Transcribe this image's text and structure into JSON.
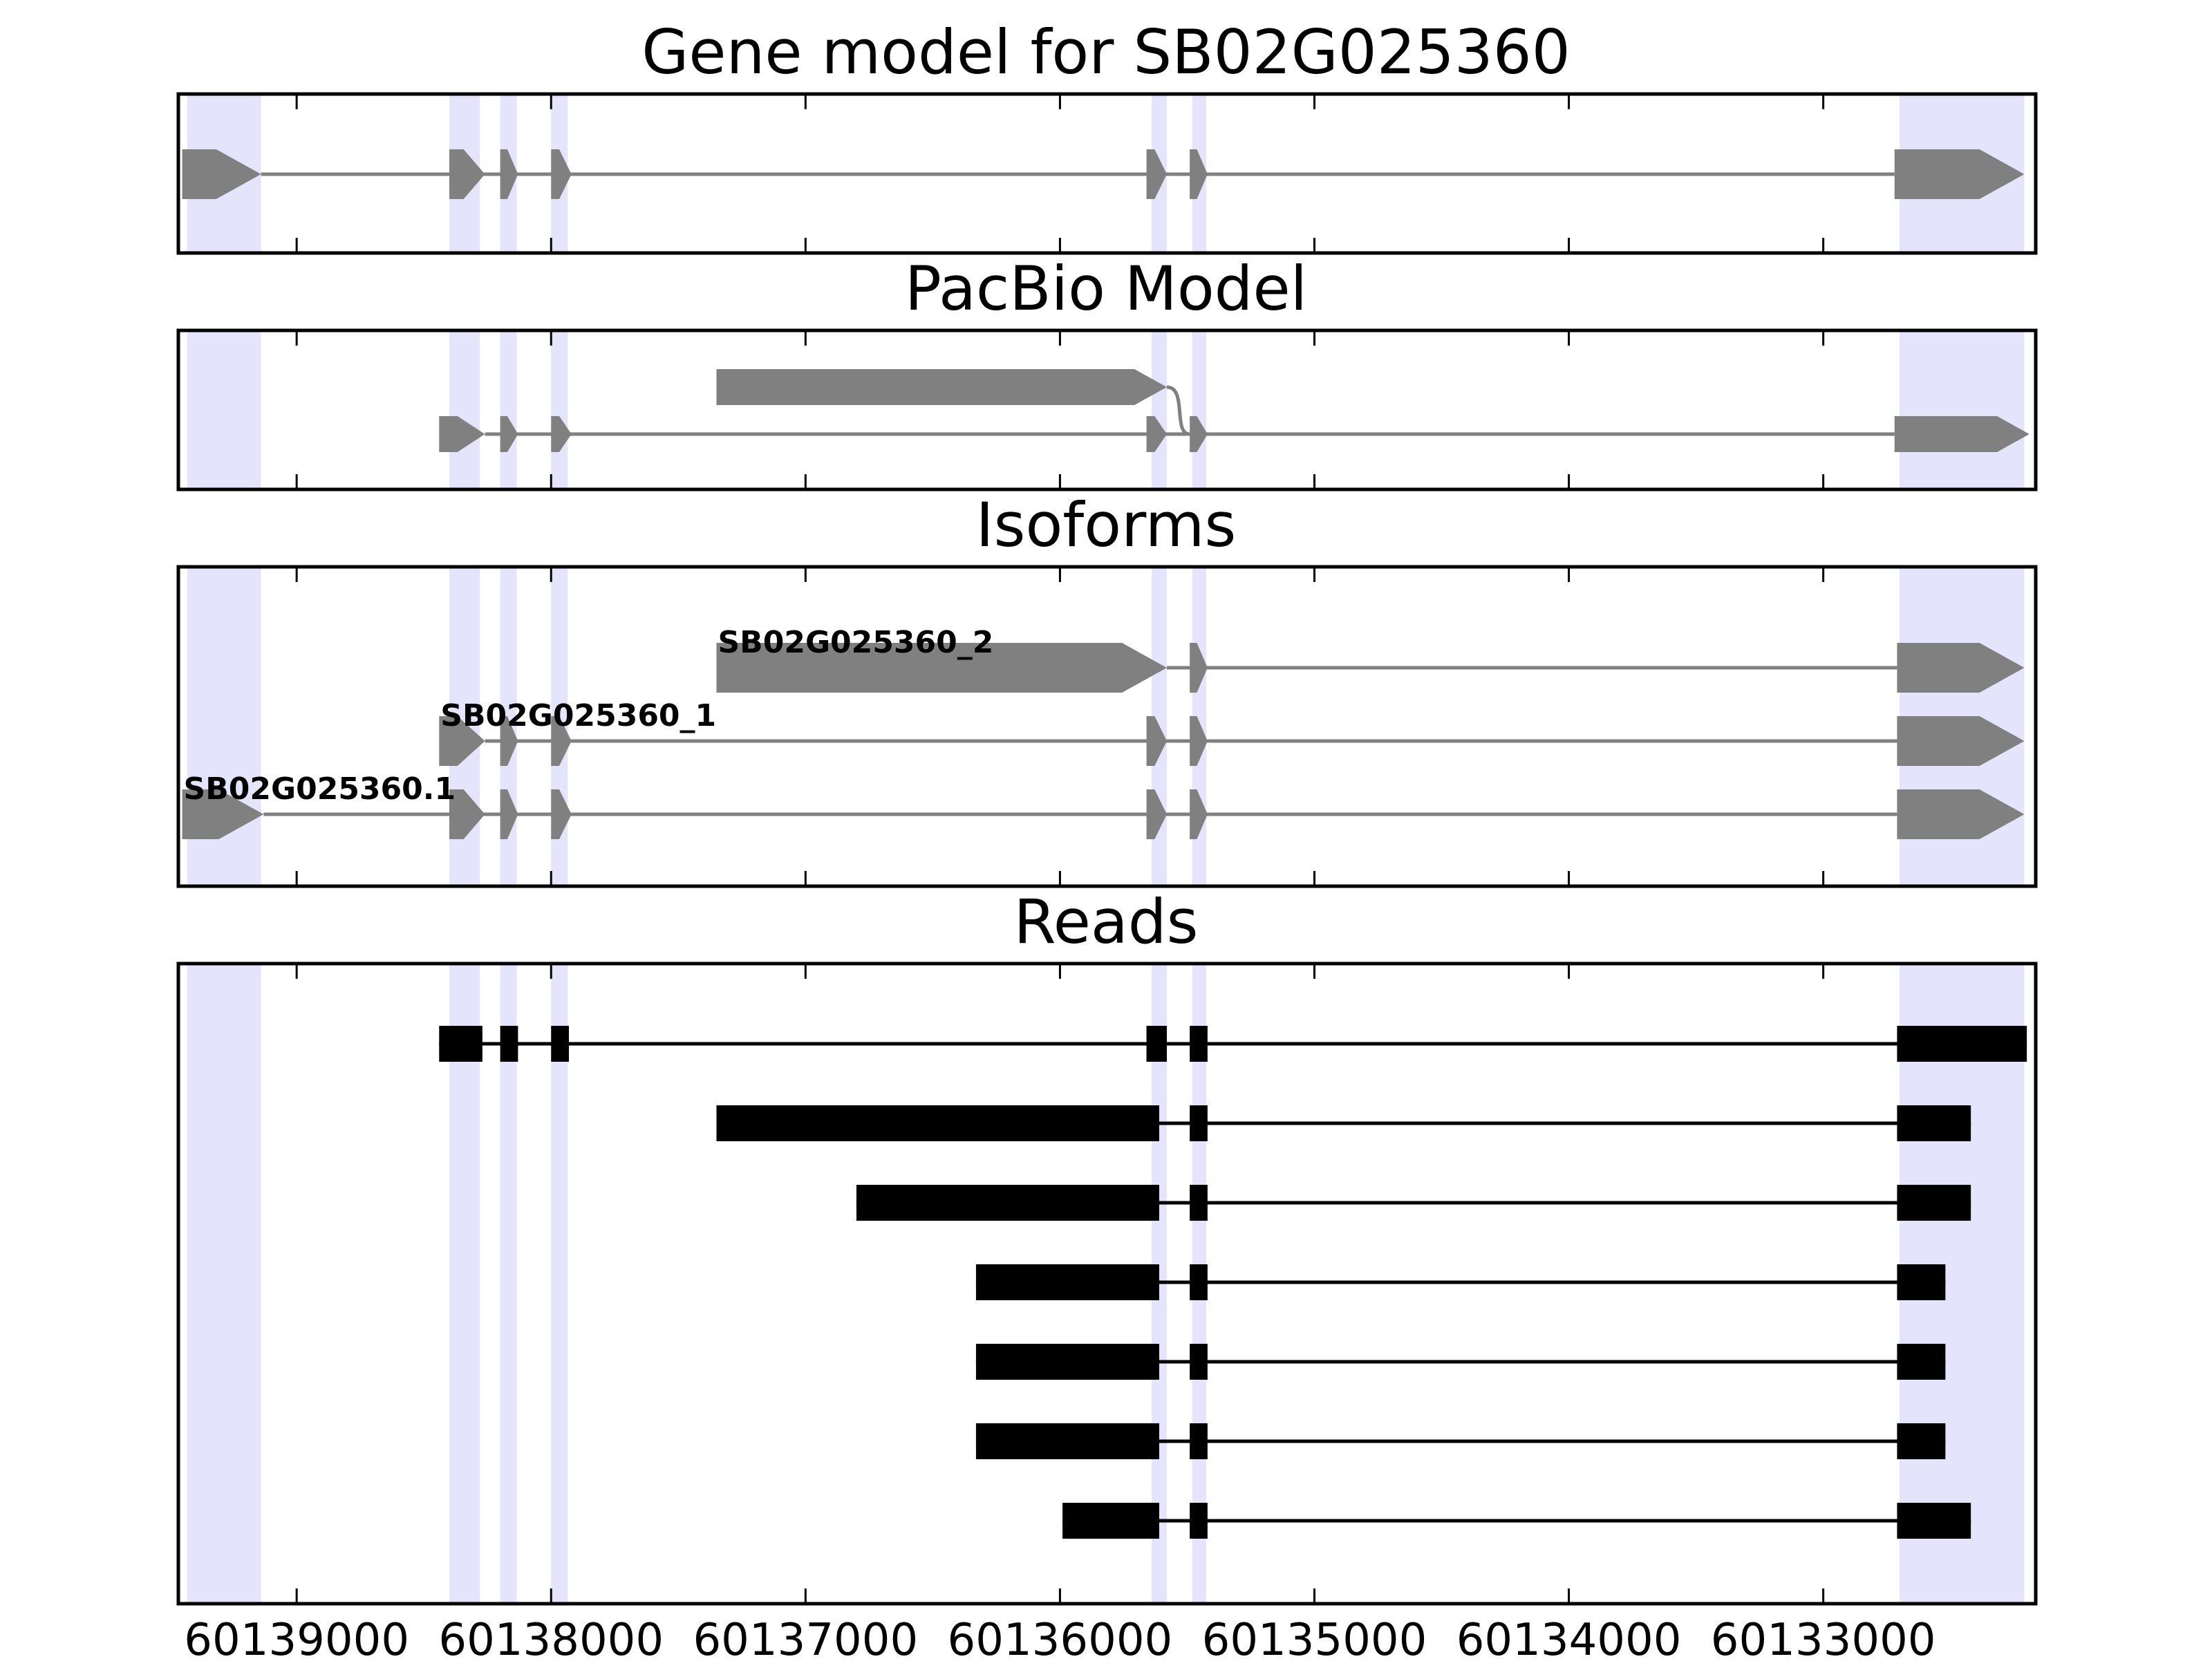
{
  "chart_data": {
    "type": "gene-model-tracks",
    "x_axis": {
      "reversed": true,
      "ticks": [
        60139000,
        60138000,
        60137000,
        60136000,
        60135000,
        60134000,
        60133000
      ],
      "tick_labels": [
        "60139000",
        "60138000",
        "60137000",
        "60136000",
        "60135000",
        "60134000",
        "60133000"
      ]
    },
    "highlight_color": "#e4e4fc",
    "exon_highlights": [
      [
        60139430,
        60139140
      ],
      [
        60138400,
        60138280
      ],
      [
        60138200,
        60138135
      ],
      [
        60138000,
        60137935
      ],
      [
        60135640,
        60135580
      ],
      [
        60135480,
        60135425
      ],
      [
        60132700,
        60132210
      ]
    ],
    "panels": [
      {
        "title": "Gene model for SB02G025360",
        "color": "#808080",
        "models": [
          {
            "label": "",
            "exons": [
              [
                60139450,
                60139140
              ],
              [
                60138400,
                60138260
              ],
              [
                60138200,
                60138130
              ],
              [
                60138000,
                60137920
              ],
              [
                60135660,
                60135580
              ],
              [
                60135490,
                60135420
              ],
              [
                60132720,
                60132210
              ]
            ]
          }
        ]
      },
      {
        "title": "PacBio Model",
        "color": "#808080",
        "models": [
          {
            "label": "",
            "exons": [
              [
                60138440,
                60138260
              ],
              [
                60138200,
                60138130
              ],
              [
                60138000,
                60137920
              ],
              [
                60135660,
                60135580
              ],
              [
                60135490,
                60135420
              ],
              [
                60132720,
                60132190
              ]
            ]
          },
          {
            "label": "",
            "exons": [
              [
                60137350,
                60135580
              ]
            ]
          }
        ]
      },
      {
        "title": "Isoforms",
        "color": "#808080",
        "models": [
          {
            "label": "SB02G025360_2",
            "exons": [
              [
                60137350,
                60135580
              ],
              [
                60135490,
                60135420
              ],
              [
                60132710,
                60132210
              ]
            ]
          },
          {
            "label": "SB02G025360_1",
            "exons": [
              [
                60138440,
                60138260
              ],
              [
                60138200,
                60138130
              ],
              [
                60138000,
                60137920
              ],
              [
                60135660,
                60135580
              ],
              [
                60135490,
                60135420
              ],
              [
                60132710,
                60132210
              ]
            ]
          },
          {
            "label": "SB02G025360.1",
            "exons": [
              [
                60139450,
                60139130
              ],
              [
                60138400,
                60138260
              ],
              [
                60138200,
                60138130
              ],
              [
                60138000,
                60137920
              ],
              [
                60135660,
                60135580
              ],
              [
                60135490,
                60135420
              ],
              [
                60132710,
                60132210
              ]
            ]
          }
        ]
      },
      {
        "title": "Reads",
        "color": "#000000",
        "reads": [
          [
            [
              60138440,
              60138270
            ],
            [
              60138200,
              60138130
            ],
            [
              60138000,
              60137930
            ],
            [
              60135660,
              60135580
            ],
            [
              60135490,
              60135420
            ],
            [
              60132710,
              60132200
            ]
          ],
          [
            [
              60137350,
              60135610
            ],
            [
              60135490,
              60135420
            ],
            [
              60132710,
              60132420
            ]
          ],
          [
            [
              60136800,
              60135610
            ],
            [
              60135490,
              60135420
            ],
            [
              60132710,
              60132420
            ]
          ],
          [
            [
              60136330,
              60135610
            ],
            [
              60135490,
              60135420
            ],
            [
              60132710,
              60132520
            ]
          ],
          [
            [
              60136330,
              60135610
            ],
            [
              60135490,
              60135420
            ],
            [
              60132710,
              60132520
            ]
          ],
          [
            [
              60136330,
              60135610
            ],
            [
              60135490,
              60135420
            ],
            [
              60132710,
              60132520
            ]
          ],
          [
            [
              60135990,
              60135610
            ],
            [
              60135490,
              60135420
            ],
            [
              60132710,
              60132420
            ]
          ]
        ]
      }
    ]
  }
}
